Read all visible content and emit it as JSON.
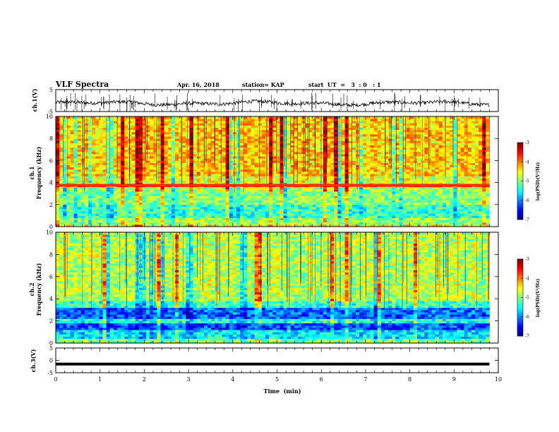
{
  "header": {
    "title": "VLF Spectra",
    "date": "Apr. 16, 2018",
    "station": "station= KAP",
    "start": "start  UT  =   3  : 0   : 1"
  },
  "chart_data": [
    {
      "type": "line",
      "name": "ch1-waveform",
      "ylabel": "ch.1(V)",
      "ylim": [
        -5,
        5
      ],
      "yticks": [
        "5",
        "-5"
      ],
      "xlim": [
        0,
        10
      ],
      "baseline": -1.2,
      "amplitude": 1.6,
      "spike_count": 70
    },
    {
      "type": "heatmap",
      "name": "ch1-spectrogram",
      "ylabel": "ch.1",
      "ylabel2": "Frequency (kHz)",
      "ylim": [
        0,
        10
      ],
      "yticks": [
        "0",
        "2",
        "4",
        "6",
        "8",
        "10"
      ],
      "xlim": [
        0,
        9.8
      ],
      "bands": [
        {
          "from": 0,
          "to": 0.3,
          "level": -4.4
        },
        {
          "from": 0.3,
          "to": 0.9,
          "level": -4.9
        },
        {
          "from": 0.9,
          "to": 2.0,
          "level": -5.3
        },
        {
          "from": 2.0,
          "to": 3.2,
          "level": -5.0
        },
        {
          "from": 3.2,
          "to": 3.6,
          "level": -4.8
        },
        {
          "from": 3.6,
          "to": 3.9,
          "level": -3.8
        },
        {
          "from": 3.9,
          "to": 4.6,
          "level": -4.6
        },
        {
          "from": 4.6,
          "to": 10,
          "level": -4.3
        }
      ],
      "line_levels": [
        3.75
      ],
      "colorbar": {
        "label": "log(PSD)(V²/Hz)",
        "min": -7,
        "max": -3,
        "ticks": [
          "-3",
          "-4",
          "-5",
          "-6",
          "-7"
        ]
      }
    },
    {
      "type": "heatmap",
      "name": "ch2-spectrogram",
      "ylabel": "ch.2",
      "ylabel2": "Frequency (kHz)",
      "ylim": [
        0,
        10
      ],
      "yticks": [
        "0",
        "2",
        "4",
        "6",
        "8",
        "10"
      ],
      "xlim": [
        0,
        9.8
      ],
      "bands": [
        {
          "from": 0,
          "to": 0.4,
          "level": -5.0
        },
        {
          "from": 0.4,
          "to": 1.2,
          "level": -5.6
        },
        {
          "from": 1.2,
          "to": 1.8,
          "level": -6.2
        },
        {
          "from": 1.8,
          "to": 2.3,
          "level": -5.4
        },
        {
          "from": 2.3,
          "to": 3.2,
          "level": -6.1
        },
        {
          "from": 3.2,
          "to": 3.8,
          "level": -5.3
        },
        {
          "from": 3.8,
          "to": 10,
          "level": -4.8
        }
      ],
      "line_levels": [],
      "colorbar": {
        "label": "log(PSD)(V²/Hz)",
        "min": -7,
        "max": -3,
        "ticks": [
          "-3",
          "-4",
          "-5",
          "-6",
          "-7"
        ]
      }
    },
    {
      "type": "line",
      "name": "ch3-waveform",
      "ylabel": "ch.3(V)",
      "ylim": [
        -5,
        5
      ],
      "yticks": [
        "5",
        "0",
        "-5"
      ],
      "xlim": [
        0,
        9.8
      ],
      "value": -1.5
    }
  ],
  "xaxis": {
    "label": "Time  (min)",
    "ticks": [
      "0",
      "1",
      "2",
      "3",
      "4",
      "5",
      "6",
      "7",
      "8",
      "9",
      "10"
    ],
    "range": [
      0,
      10
    ]
  }
}
